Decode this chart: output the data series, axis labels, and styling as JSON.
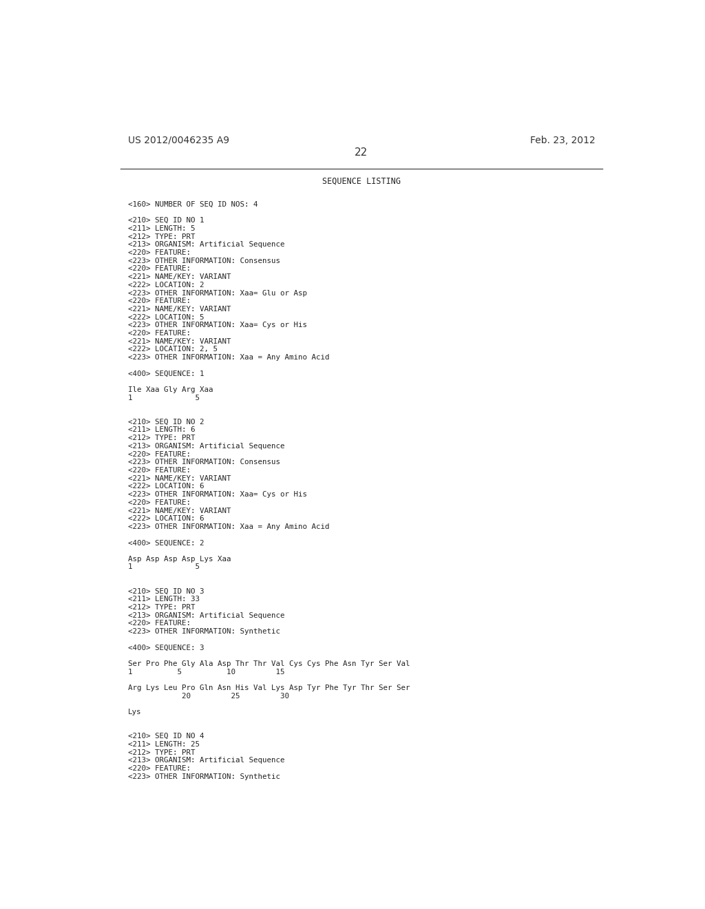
{
  "bg_color": "#ffffff",
  "header_left": "US 2012/0046235 A9",
  "header_right": "Feb. 23, 2012",
  "page_number": "22",
  "title": "SEQUENCE LISTING",
  "content_lines": [
    "",
    "<160> NUMBER OF SEQ ID NOS: 4",
    "",
    "<210> SEQ ID NO 1",
    "<211> LENGTH: 5",
    "<212> TYPE: PRT",
    "<213> ORGANISM: Artificial Sequence",
    "<220> FEATURE:",
    "<223> OTHER INFORMATION: Consensus",
    "<220> FEATURE:",
    "<221> NAME/KEY: VARIANT",
    "<222> LOCATION: 2",
    "<223> OTHER INFORMATION: Xaa= Glu or Asp",
    "<220> FEATURE:",
    "<221> NAME/KEY: VARIANT",
    "<222> LOCATION: 5",
    "<223> OTHER INFORMATION: Xaa= Cys or His",
    "<220> FEATURE:",
    "<221> NAME/KEY: VARIANT",
    "<222> LOCATION: 2, 5",
    "<223> OTHER INFORMATION: Xaa = Any Amino Acid",
    "",
    "<400> SEQUENCE: 1",
    "",
    "Ile Xaa Gly Arg Xaa",
    "1              5",
    "",
    "",
    "<210> SEQ ID NO 2",
    "<211> LENGTH: 6",
    "<212> TYPE: PRT",
    "<213> ORGANISM: Artificial Sequence",
    "<220> FEATURE:",
    "<223> OTHER INFORMATION: Consensus",
    "<220> FEATURE:",
    "<221> NAME/KEY: VARIANT",
    "<222> LOCATION: 6",
    "<223> OTHER INFORMATION: Xaa= Cys or His",
    "<220> FEATURE:",
    "<221> NAME/KEY: VARIANT",
    "<222> LOCATION: 6",
    "<223> OTHER INFORMATION: Xaa = Any Amino Acid",
    "",
    "<400> SEQUENCE: 2",
    "",
    "Asp Asp Asp Asp Lys Xaa",
    "1              5",
    "",
    "",
    "<210> SEQ ID NO 3",
    "<211> LENGTH: 33",
    "<212> TYPE: PRT",
    "<213> ORGANISM: Artificial Sequence",
    "<220> FEATURE:",
    "<223> OTHER INFORMATION: Synthetic",
    "",
    "<400> SEQUENCE: 3",
    "",
    "Ser Pro Phe Gly Ala Asp Thr Thr Val Cys Cys Phe Asn Tyr Ser Val",
    "1          5          10         15",
    "",
    "Arg Lys Leu Pro Gln Asn His Val Lys Asp Tyr Phe Tyr Thr Ser Ser",
    "            20         25         30",
    "",
    "Lys",
    "",
    "",
    "<210> SEQ ID NO 4",
    "<211> LENGTH: 25",
    "<212> TYPE: PRT",
    "<213> ORGANISM: Artificial Sequence",
    "<220> FEATURE:",
    "<223> OTHER INFORMATION: Synthetic"
  ]
}
